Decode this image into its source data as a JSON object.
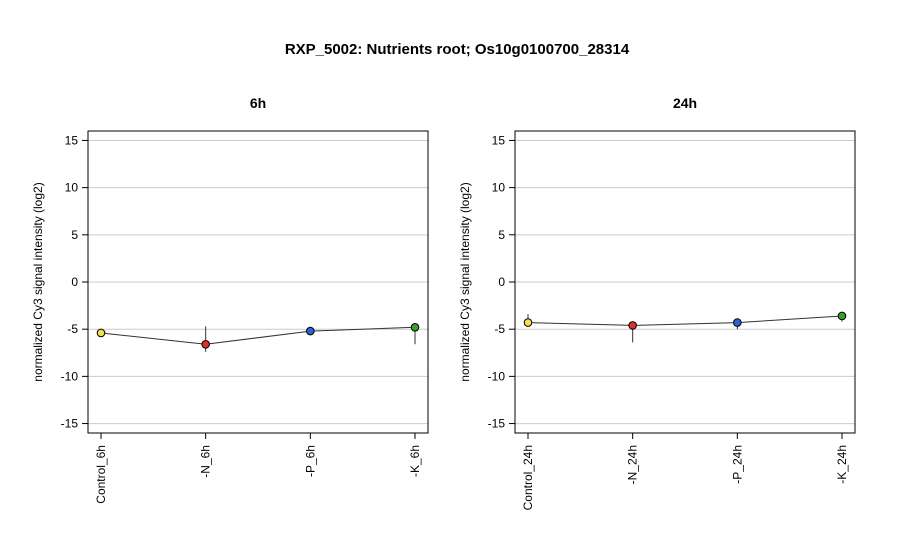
{
  "title": "RXP_5002: Nutrients root; Os10g0100700_28314",
  "chart_data": [
    {
      "type": "line",
      "title": "6h",
      "ylabel": "normalized Cy3 signal intensity (log2)",
      "ylim": [
        -16,
        16
      ],
      "yticks": [
        -15,
        -10,
        -5,
        0,
        5,
        10,
        15
      ],
      "grid": true,
      "categories": [
        "Control_6h",
        "-N_6h",
        "-P_6h",
        "-K_6h"
      ],
      "values": [
        -5.4,
        -6.6,
        -5.2,
        -4.8
      ],
      "err_low": [
        -5.6,
        -7.4,
        -5.4,
        -6.6
      ],
      "err_high": [
        -5.2,
        -4.7,
        -5.0,
        -4.6
      ],
      "point_colors": [
        "#f2e14c",
        "#e0302a",
        "#2f5fd6",
        "#3a9e2a"
      ]
    },
    {
      "type": "line",
      "title": "24h",
      "ylabel": "normalized Cy3 signal intensity (log2)",
      "ylim": [
        -16,
        16
      ],
      "yticks": [
        -15,
        -10,
        -5,
        0,
        5,
        10,
        15
      ],
      "grid": true,
      "categories": [
        "Control_24h",
        "-N_24h",
        "-P_24h",
        "-K_24h"
      ],
      "values": [
        -4.3,
        -4.6,
        -4.3,
        -3.6
      ],
      "err_low": [
        -4.6,
        -6.4,
        -5.0,
        -4.2
      ],
      "err_high": [
        -3.4,
        -4.4,
        -4.1,
        -3.4
      ],
      "point_colors": [
        "#f2e14c",
        "#e0302a",
        "#2f5fd6",
        "#3a9e2a"
      ]
    }
  ]
}
